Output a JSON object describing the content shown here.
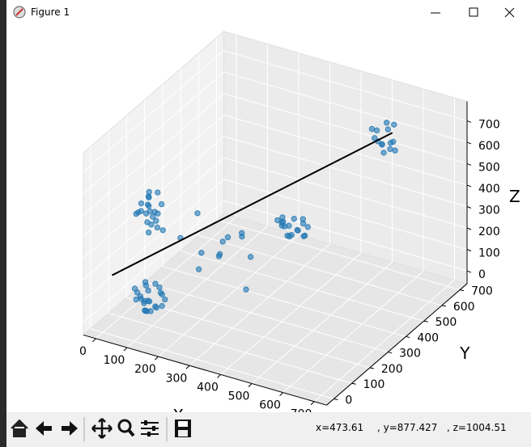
{
  "window": {
    "title": "Figure 1",
    "status": [
      "x=473.61",
      ", y=877.427",
      ", z=1004.51"
    ]
  },
  "chart_data": {
    "type": "scatter3d",
    "xlabel": "X",
    "ylabel": "Y",
    "zlabel": "Z",
    "label_color": "#ff0000",
    "xlim": [
      -40,
      740
    ],
    "ylim": [
      -40,
      740
    ],
    "zlim": [
      -60,
      790
    ],
    "xticks": [
      0,
      100,
      200,
      300,
      400,
      500,
      600,
      700
    ],
    "yticks": [
      0,
      100,
      200,
      300,
      400,
      500,
      600,
      700
    ],
    "zticks": [
      0,
      100,
      200,
      300,
      400,
      500,
      600,
      700
    ],
    "grid": true,
    "series": [
      {
        "color": "#1f77b4",
        "x": [
          60,
          110,
          85,
          130,
          70,
          95,
          120,
          50,
          105,
          80,
          140,
          65,
          100,
          90,
          115,
          75,
          55,
          125,
          95,
          85,
          135,
          70,
          110,
          100
        ],
        "y": [
          80,
          60,
          110,
          95,
          130,
          70,
          120,
          90,
          50,
          100,
          85,
          115,
          140,
          75,
          65,
          105,
          95,
          80,
          125,
          60,
          110,
          90,
          100,
          70
        ],
        "z": [
          60,
          90,
          40,
          110,
          70,
          30,
          80,
          100,
          50,
          120,
          60,
          20,
          90,
          70,
          40,
          130,
          80,
          50,
          10,
          100,
          70,
          60,
          140,
          30
        ]
      },
      {
        "color": "#1f77b4",
        "x": [
          70,
          110,
          90,
          130,
          60,
          100,
          120,
          80,
          140,
          95,
          75,
          115,
          85,
          105,
          65,
          125,
          90,
          110,
          80,
          100,
          135,
          55
        ],
        "y": [
          90,
          70,
          120,
          100,
          80,
          130,
          60,
          110,
          90,
          75,
          125,
          95,
          65,
          105,
          140,
          85,
          100,
          55,
          115,
          80,
          70,
          100
        ],
        "z": [
          470,
          500,
          430,
          520,
          460,
          540,
          450,
          490,
          410,
          480,
          510,
          440,
          530,
          470,
          500,
          420,
          560,
          460,
          480,
          390,
          500,
          450
        ]
      },
      {
        "color": "#1f77b4",
        "x": [
          360,
          400,
          380,
          420,
          340,
          390,
          410,
          370,
          430,
          350,
          395,
          385,
          415,
          365,
          405,
          375,
          345,
          425
        ],
        "y": [
          370,
          390,
          350,
          410,
          380,
          360,
          400,
          420,
          370,
          390,
          340,
          380,
          360,
          400,
          410,
          350,
          395,
          385
        ],
        "z": [
          320,
          300,
          340,
          310,
          330,
          290,
          350,
          320,
          300,
          340,
          310,
          280,
          330,
          300,
          320,
          360,
          310,
          290
        ]
      },
      {
        "color": "#1f77b4",
        "x": [
          530,
          570,
          550,
          590,
          520,
          560,
          540,
          580,
          510,
          555,
          575,
          535,
          565,
          545
        ],
        "y": [
          590,
          610,
          630,
          600,
          620,
          580,
          640,
          590,
          610,
          650,
          620,
          600,
          570,
          615
        ],
        "z": [
          640,
          620,
          660,
          600,
          650,
          630,
          680,
          610,
          660,
          590,
          700,
          620,
          640,
          560
        ]
      },
      {
        "color": "#1f77b4",
        "x": [
          200,
          250,
          300,
          180,
          280,
          230,
          320,
          150,
          260,
          210,
          330,
          170
        ],
        "y": [
          200,
          260,
          300,
          220,
          180,
          250,
          240,
          170,
          320,
          280,
          200,
          230
        ],
        "z": [
          250,
          300,
          200,
          150,
          350,
          220,
          100,
          320,
          280,
          180,
          380,
          400
        ]
      }
    ],
    "line": {
      "color": "#000000",
      "x": [
        0,
        570
      ],
      "y": [
        50,
        620
      ],
      "z": [
        170,
        660
      ]
    }
  }
}
